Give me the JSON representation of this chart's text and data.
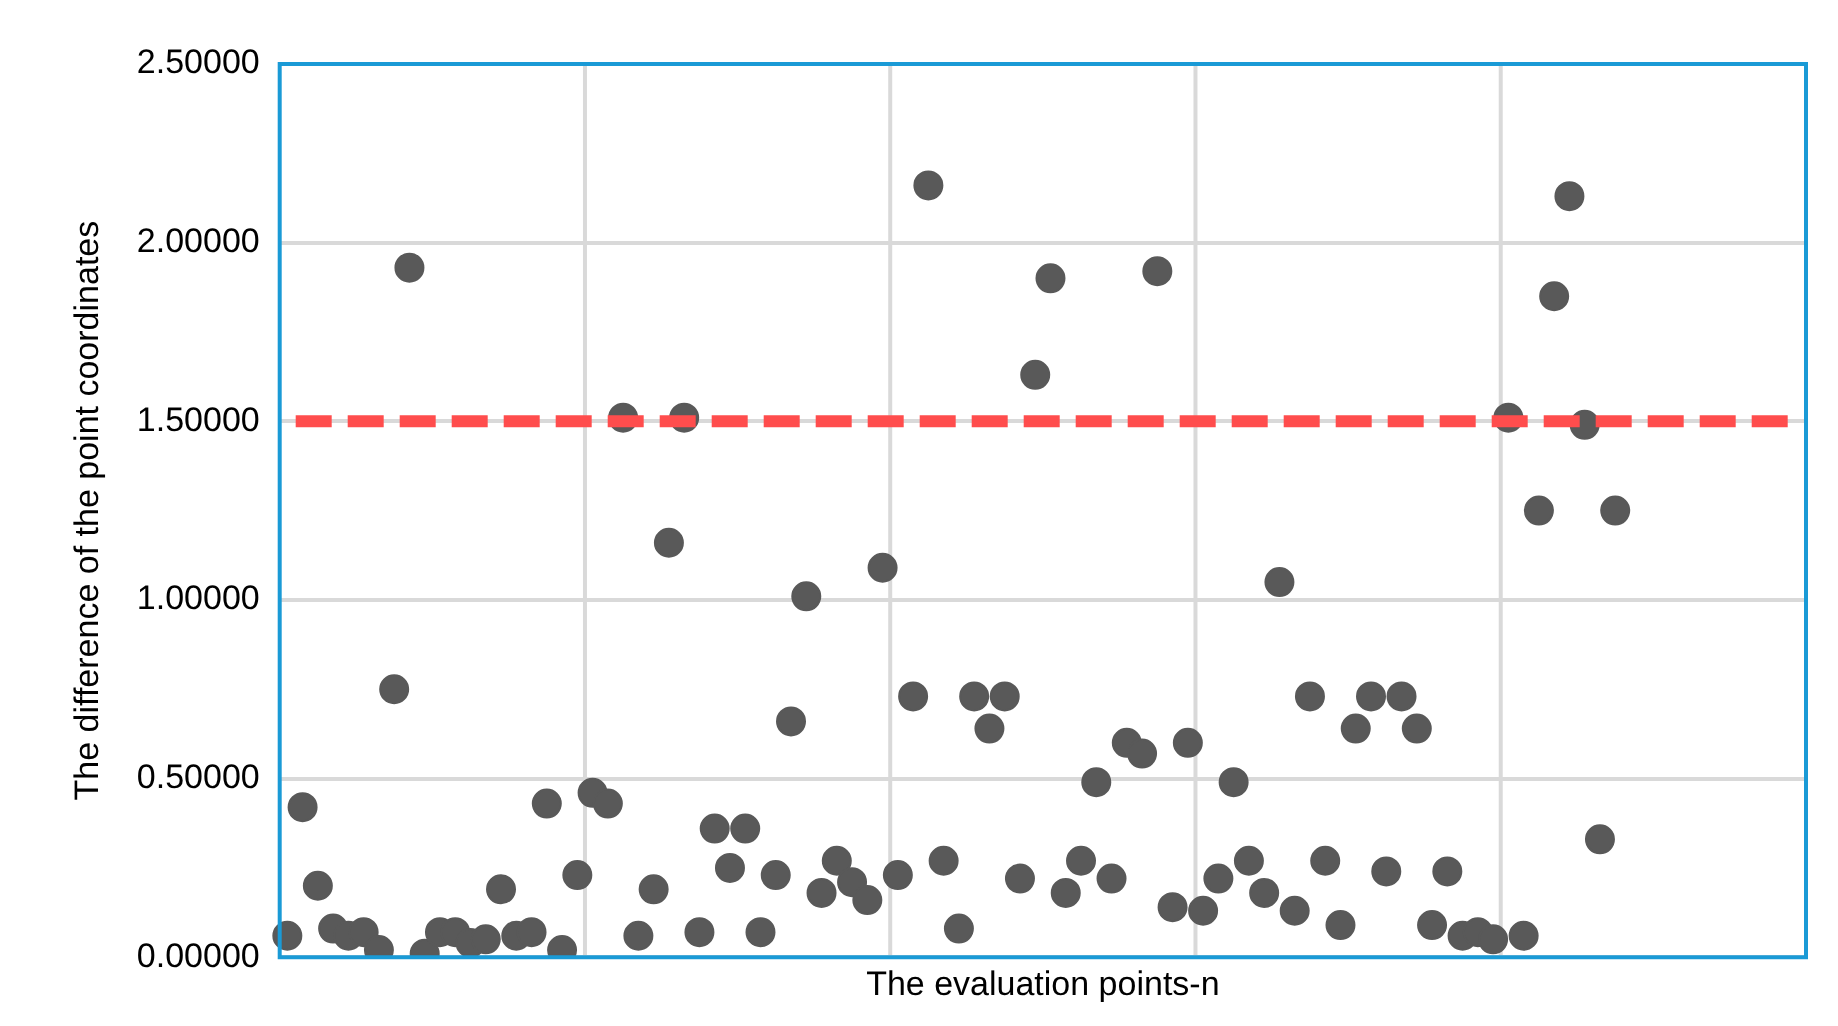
{
  "chart_data": {
    "type": "scatter",
    "xlabel": "The evaluation points-n",
    "ylabel": "The difference of the point coordinates",
    "categories": [
      null,
      null,
      null,
      null,
      null,
      null,
      null,
      null,
      null,
      null,
      null,
      null,
      null,
      null,
      null,
      null,
      null,
      null,
      null,
      null,
      null,
      null,
      null,
      null,
      null,
      null,
      null,
      null,
      null,
      null,
      null,
      null,
      null,
      null,
      null,
      null,
      null,
      null,
      null,
      null,
      null,
      null,
      null,
      null,
      null,
      null,
      null,
      null,
      null,
      null,
      null,
      null,
      null,
      null,
      null,
      null,
      null,
      null,
      null,
      null,
      null,
      null,
      null,
      null,
      null,
      null,
      null,
      null,
      null,
      null,
      null,
      null,
      null,
      null,
      null,
      null,
      null,
      null,
      null,
      null,
      null,
      null,
      null,
      null,
      null,
      null,
      null,
      null,
      null,
      null,
      null,
      null,
      null,
      null,
      null,
      null,
      null,
      null,
      null,
      null
    ],
    "series": [
      {
        "color": "#595959",
        "values": [
          0.06,
          0.42,
          0.2,
          0.08,
          0.06,
          0.07,
          0.02,
          0.75,
          1.93,
          0.01,
          0.07,
          0.07,
          0.04,
          0.05,
          0.19,
          0.06,
          0.07,
          0.43,
          0.02,
          0.23,
          0.46,
          0.43,
          1.51,
          0.06,
          0.19,
          1.16,
          1.51,
          0.07,
          0.36,
          0.25,
          0.36,
          0.07,
          0.23,
          0.66,
          1.01,
          0.18,
          0.27,
          0.21,
          0.16,
          1.09,
          0.23,
          0.73,
          2.16,
          0.27,
          0.08,
          0.73,
          0.64,
          0.73,
          0.22,
          1.63,
          1.9,
          0.18,
          0.27,
          0.49,
          0.22,
          0.6,
          0.57,
          1.92,
          0.14,
          0.6,
          0.13,
          0.22,
          0.49,
          0.27,
          0.18,
          1.05,
          0.13,
          0.73,
          0.27,
          0.09,
          0.64,
          0.73,
          0.24,
          0.73,
          0.64,
          0.09,
          0.24,
          0.06,
          0.07,
          0.05,
          1.51,
          0.06,
          1.25,
          1.85,
          2.13,
          1.49,
          0.33,
          1.25,
          null,
          null,
          null,
          null,
          null,
          null,
          null,
          null,
          null,
          null,
          null,
          null
        ]
      }
    ],
    "ylim": [
      0,
      2.5
    ],
    "yticks": [
      {
        "value": 0,
        "label": "0.00000"
      },
      {
        "value": 0.5,
        "label": "0.50000"
      },
      {
        "value": 1,
        "label": "1.00000"
      },
      {
        "value": 1.5,
        "label": "1.50000"
      },
      {
        "value": 2,
        "label": "2.00000"
      },
      {
        "value": 2.5,
        "label": "2.50000"
      }
    ],
    "ref_lines": [
      {
        "axis": "y",
        "value": 1.5,
        "color": "#ff4d4d",
        "line_style": "dashed"
      }
    ],
    "grid": true,
    "marker": "circle",
    "tick_labels": "y",
    "legend": false
  }
}
